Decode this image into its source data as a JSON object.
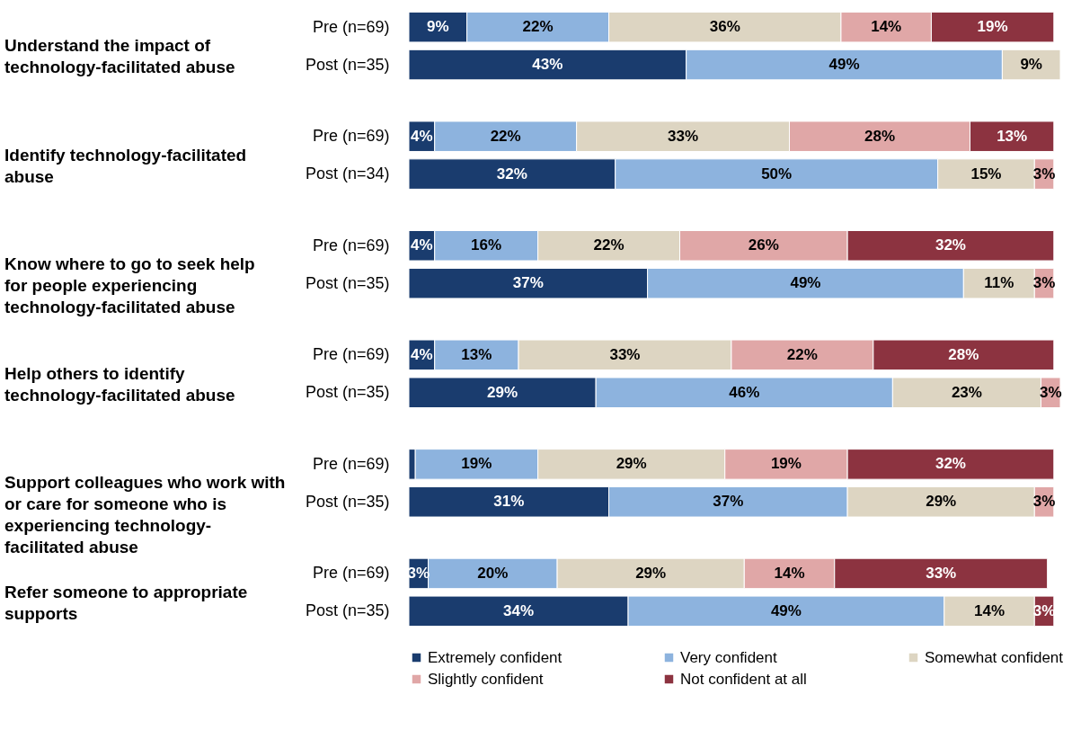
{
  "chart_data": {
    "type": "bar",
    "orientation": "horizontal",
    "stacked": true,
    "legend": "bottom",
    "categories": [
      "Pre (n=69)",
      "Post (n=35)",
      "Pre (n=69)",
      "Post (n=34)",
      "Pre (n=69)",
      "Post (n=35)",
      "Pre (n=69)",
      "Post (n=35)",
      "Pre (n=69)",
      "Post (n=35)",
      "Pre (n=69)",
      "Post (n=35)"
    ],
    "annotations": [
      "Understand the impact of technology-facilitated abuse",
      "Identify technology-facilitated abuse",
      "Know where to go to seek help for people experiencing technology-facilitated abuse",
      "Help others to identify technology-facilitated abuse",
      "Support colleagues who work with or care for someone who is experiencing technology-facilitated abuse",
      "Refer someone to appropriate supports"
    ],
    "series": [
      {
        "name": "Extremely confident",
        "color": "#1a3c6e",
        "values": [
          9,
          43,
          4,
          32,
          4,
          37,
          4,
          29,
          1,
          31,
          3,
          34
        ],
        "value_labels": [
          "9%",
          "43%",
          "4%",
          "32%",
          "4%",
          "37%",
          "4%",
          "29%",
          null,
          "31%",
          "3%",
          "34%"
        ]
      },
      {
        "name": "Very confident",
        "color": "#8db3de",
        "values": [
          22,
          49,
          22,
          50,
          16,
          49,
          13,
          46,
          19,
          37,
          20,
          49
        ],
        "value_labels": [
          "22%",
          "49%",
          "22%",
          "50%",
          "16%",
          "49%",
          "13%",
          "46%",
          "19%",
          "37%",
          "20%",
          "49%"
        ]
      },
      {
        "name": "Somewhat confident",
        "color": "#ddd5c2",
        "values": [
          36,
          9,
          33,
          15,
          22,
          11,
          33,
          23,
          29,
          29,
          29,
          14
        ],
        "value_labels": [
          "36%",
          "9%",
          "33%",
          "15%",
          "22%",
          "11%",
          "33%",
          "23%",
          "29%",
          "29%",
          "29%",
          "14%"
        ]
      },
      {
        "name": "Slightly confident",
        "color": "#e0a7a7",
        "values": [
          14,
          null,
          28,
          3,
          26,
          3,
          22,
          3,
          19,
          3,
          14,
          null
        ],
        "value_labels": [
          "14%",
          null,
          "28%",
          "3%",
          "26%",
          "3%",
          "22%",
          "3%",
          "19%",
          "3%",
          "14%",
          null
        ]
      },
      {
        "name": "Not confident at all",
        "color": "#8c3340",
        "values": [
          19,
          null,
          13,
          null,
          32,
          null,
          28,
          null,
          32,
          null,
          33,
          3
        ],
        "value_labels": [
          "19%",
          null,
          "13%",
          null,
          "32%",
          null,
          "28%",
          null,
          "32%",
          null,
          "33%",
          "3%"
        ]
      }
    ]
  }
}
